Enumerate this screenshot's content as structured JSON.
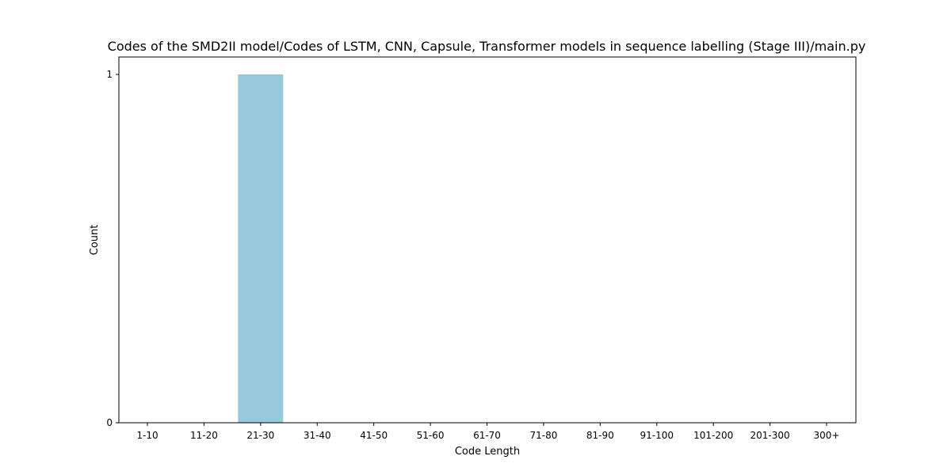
{
  "chart_data": {
    "type": "bar",
    "title": "Codes of the SMD2II model/Codes of LSTM, CNN, Capsule, Transformer models in sequence labelling (Stage III)/main.py",
    "xlabel": "Code Length",
    "ylabel": "Count",
    "categories": [
      "1-10",
      "11-20",
      "21-30",
      "31-40",
      "41-50",
      "51-60",
      "61-70",
      "71-80",
      "81-90",
      "91-100",
      "101-200",
      "201-300",
      "300+"
    ],
    "values": [
      0,
      0,
      1,
      0,
      0,
      0,
      0,
      0,
      0,
      0,
      0,
      0,
      0
    ],
    "ylim": [
      0,
      1
    ],
    "yticks": [
      0,
      1
    ],
    "bar_color": "#96c9dc",
    "grid": false,
    "legend": "none"
  }
}
